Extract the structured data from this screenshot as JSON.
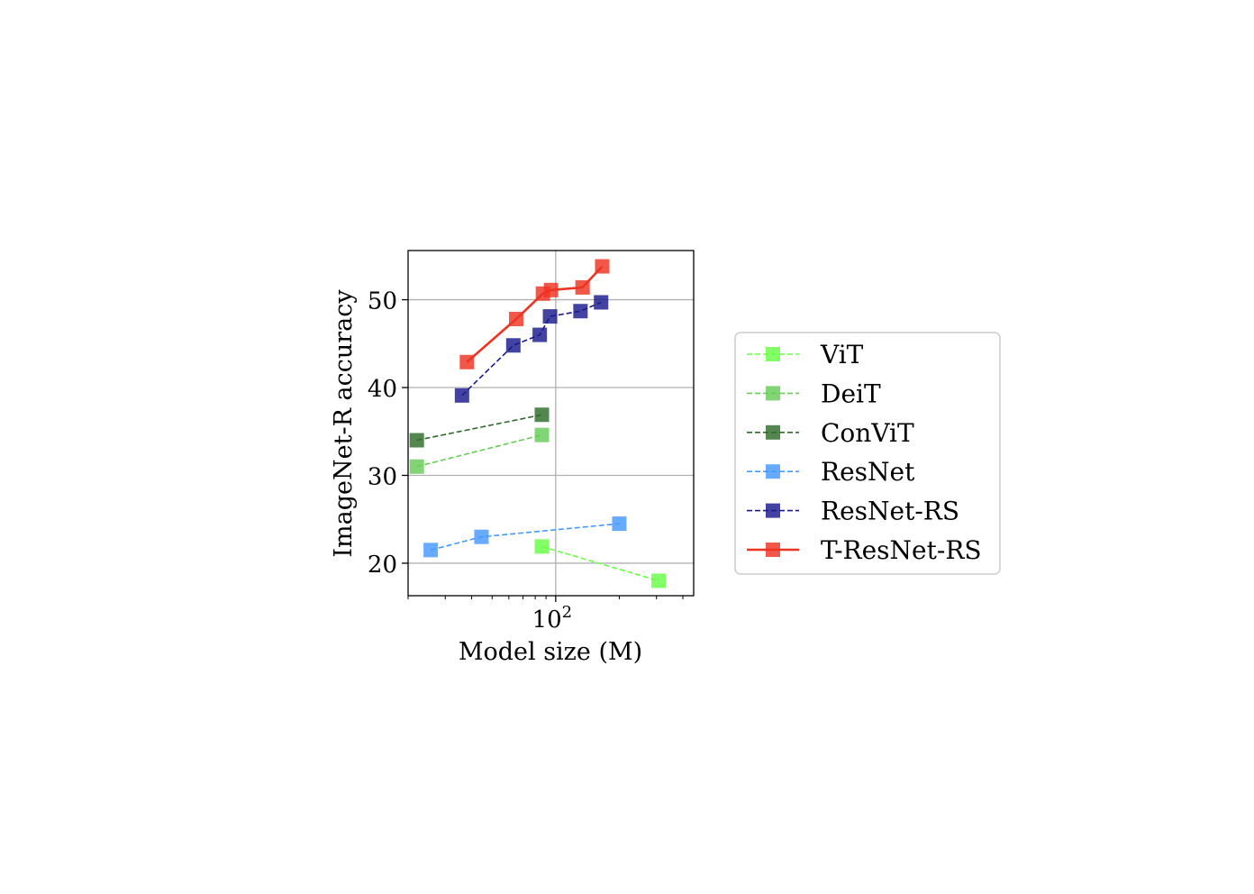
{
  "chart_data": {
    "type": "line",
    "xlabel": "Model size (M)",
    "ylabel": "ImageNet-R accuracy",
    "xscale": "log",
    "xlim": [
      20,
      450
    ],
    "ylim": [
      16.3,
      55.6
    ],
    "yticks": [
      20,
      30,
      40,
      50
    ],
    "ytick_labels": [
      "20",
      "30",
      "40",
      "50"
    ],
    "xticks_major": [
      100
    ],
    "xtick_base": "10",
    "xtick_exp": "2",
    "grid": true,
    "legend_position": "right, outside plot",
    "series": [
      {
        "name": "ViT",
        "color": "#66ff44",
        "linestyle": "dashed",
        "x": [
          86,
          307
        ],
        "y": [
          21.9,
          18.0
        ]
      },
      {
        "name": "DeiT",
        "color": "#66cc55",
        "linestyle": "dashed",
        "x": [
          22,
          86
        ],
        "y": [
          31.0,
          34.6
        ]
      },
      {
        "name": "ConViT",
        "color": "#2e6b2a",
        "linestyle": "dashed",
        "x": [
          22,
          86
        ],
        "y": [
          34.0,
          36.9
        ]
      },
      {
        "name": "ResNet",
        "color": "#4499ff",
        "linestyle": "dashed",
        "x": [
          25.6,
          44.5,
          200
        ],
        "y": [
          21.5,
          23.0,
          24.5
        ]
      },
      {
        "name": "ResNet-RS",
        "color": "#1a1a8c",
        "linestyle": "dashed",
        "x": [
          36,
          63,
          84,
          94,
          131,
          164
        ],
        "y": [
          39.1,
          44.8,
          46.0,
          48.1,
          48.7,
          49.7
        ]
      },
      {
        "name": "T-ResNet-RS",
        "color": "#ee3322",
        "linestyle": "solid",
        "x": [
          38,
          65,
          87,
          95,
          134,
          166
        ],
        "y": [
          42.9,
          47.8,
          50.7,
          51.1,
          51.4,
          53.8
        ]
      }
    ]
  }
}
